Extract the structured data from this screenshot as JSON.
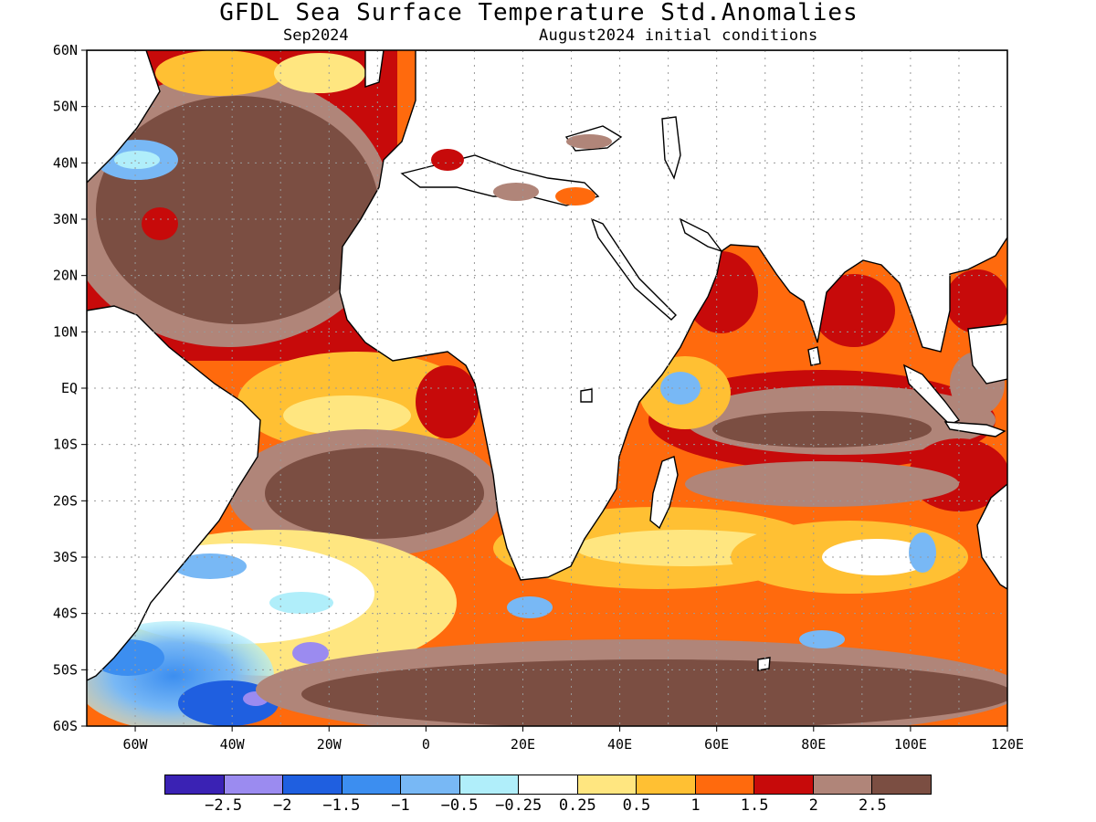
{
  "title": "GFDL Sea Surface Temperature Std.Anomalies",
  "subtitle_left": "Sep2024",
  "subtitle_right": "August2024 initial conditions",
  "map": {
    "lon_range": [
      -70,
      120
    ],
    "lat_range": [
      -60,
      60
    ],
    "lat_labels": [
      "60N",
      "50N",
      "40N",
      "30N",
      "20N",
      "10N",
      "EQ",
      "10S",
      "20S",
      "30S",
      "40S",
      "50S",
      "60S"
    ],
    "lon_labels": [
      "60W",
      "40W",
      "20W",
      "0",
      "20E",
      "40E",
      "60E",
      "80E",
      "100E",
      "120E"
    ],
    "land_color": "#ffffff",
    "coast_color": "#000000",
    "grid": "dotted"
  },
  "colorbar": {
    "colors": [
      "#3a22b4",
      "#9b8bf0",
      "#1f5fe0",
      "#3c8ef0",
      "#78b8f5",
      "#b0eefa",
      "#ffffff",
      "#ffe680",
      "#ffc033",
      "#ff6a0d",
      "#c70a0a",
      "#b08579",
      "#7b4e42"
    ],
    "labels": [
      "-2.5",
      "-2",
      "-1.5",
      "-1",
      "-0.5",
      "-0.25",
      "0.25",
      "0.5",
      "1",
      "1.5",
      "2",
      "2.5"
    ]
  }
}
